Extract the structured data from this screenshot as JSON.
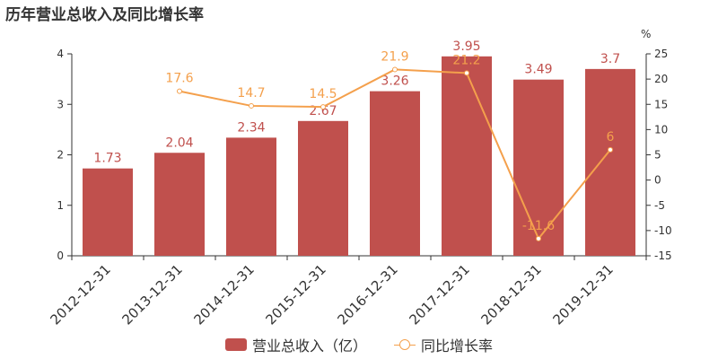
{
  "title": "历年营业总收入及同比增长率",
  "chart_data": {
    "type": "bar+line",
    "categories": [
      "2012-12-31",
      "2013-12-31",
      "2014-12-31",
      "2015-12-31",
      "2016-12-31",
      "2017-12-31",
      "2018-12-31",
      "2019-12-31"
    ],
    "series": [
      {
        "name": "营业总收入（亿）",
        "type": "bar",
        "axis": "left",
        "color": "#c0504d",
        "values": [
          1.73,
          2.04,
          2.34,
          2.67,
          3.26,
          3.95,
          3.49,
          3.7
        ]
      },
      {
        "name": "同比增长率",
        "type": "line",
        "axis": "right",
        "color": "#f4a04c",
        "values": [
          null,
          17.6,
          14.7,
          14.5,
          21.9,
          21.2,
          -11.6,
          6
        ]
      }
    ],
    "left_axis": {
      "ylim": [
        0,
        4
      ],
      "ticks": [
        0,
        1,
        2,
        3,
        4
      ]
    },
    "right_axis": {
      "unit": "%",
      "ylim": [
        -15,
        25
      ],
      "ticks": [
        -15,
        -10,
        -5,
        0,
        5,
        10,
        15,
        20,
        25
      ]
    },
    "legend_position": "bottom-center",
    "grid": false
  },
  "legend": {
    "bar_label": "营业总收入（亿）",
    "line_label": "同比增长率"
  }
}
